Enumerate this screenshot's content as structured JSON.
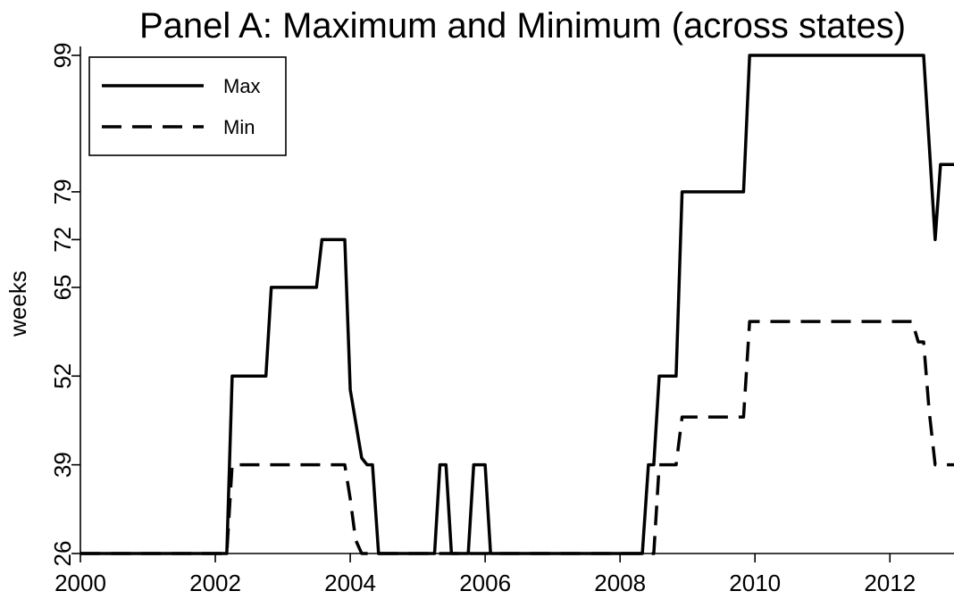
{
  "chart_data": {
    "type": "line",
    "title": "Panel A:  Maximum and Minimum (across states)",
    "xlabel": "",
    "ylabel": "weeks",
    "xlim": [
      2000,
      2012.95
    ],
    "ylim": [
      26,
      99
    ],
    "x_ticks": [
      2000,
      2002,
      2004,
      2006,
      2008,
      2010,
      2012
    ],
    "x_tick_labels": [
      "2000",
      "2002",
      "2004",
      "2006",
      "2008",
      "2010",
      "2012"
    ],
    "y_ticks": [
      26,
      39,
      52,
      65,
      72,
      79,
      99
    ],
    "y_tick_labels": [
      "26",
      "39",
      "52",
      "65",
      "72",
      "79",
      "99"
    ],
    "grid": false,
    "legend_placement": "top-left",
    "series": [
      {
        "name": "Max",
        "dash": "solid",
        "color": "#000000",
        "x": [
          2000,
          2002.17,
          2002.25,
          2002.75,
          2002.83,
          2003.5,
          2003.58,
          2003.92,
          2004.0,
          2004.17,
          2004.25,
          2004.33,
          2004.42,
          2005.25,
          2005.33,
          2005.42,
          2005.5,
          2005.75,
          2005.83,
          2006.0,
          2006.08,
          2008.33,
          2008.42,
          2008.5,
          2008.58,
          2008.83,
          2008.92,
          2009.83,
          2009.92,
          2012.5,
          2012.67,
          2012.75,
          2012.95
        ],
        "y": [
          26,
          26,
          52,
          52,
          65,
          65,
          72,
          72,
          50,
          40,
          39,
          39,
          26,
          26,
          39,
          39,
          26,
          26,
          39,
          39,
          26,
          26,
          39,
          39,
          52,
          52,
          79,
          79,
          99,
          99,
          72,
          83,
          83
        ]
      },
      {
        "name": "Min",
        "dash": "dashed",
        "color": "#000000",
        "x": [
          2000,
          2002.17,
          2002.25,
          2003.92,
          2004.0,
          2004.08,
          2004.17,
          2008.5,
          2008.58,
          2008.75,
          2008.83,
          2008.92,
          2009.83,
          2009.92,
          2012.33,
          2012.42,
          2012.5,
          2012.58,
          2012.67,
          2012.95
        ],
        "y": [
          26,
          26,
          39,
          39,
          34,
          28,
          26,
          26,
          39,
          39,
          39,
          46,
          46,
          60,
          60,
          57,
          57,
          47,
          39,
          39
        ]
      }
    ]
  }
}
